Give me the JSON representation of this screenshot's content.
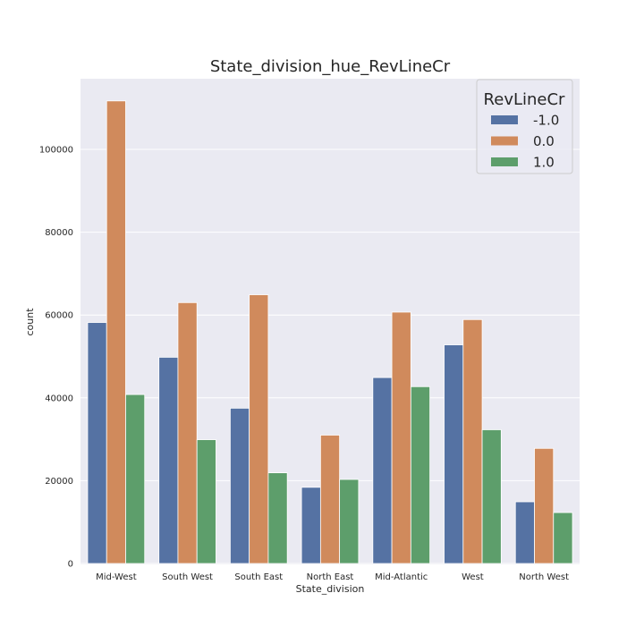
{
  "chart_data": {
    "type": "bar",
    "title": "State_division_hue_RevLineCr",
    "xlabel": "State_division",
    "ylabel": "count",
    "ylim": [
      0,
      120000
    ],
    "yticks": [
      "0",
      "20000",
      "40000",
      "60000",
      "80000",
      "100000"
    ],
    "grid": true,
    "legend_position": "top-right",
    "legend_title": "RevLineCr",
    "categories": [
      "Mid-West",
      "South West",
      "South East",
      "North East",
      "Mid-Atlantic",
      "West",
      "North West"
    ],
    "series": [
      {
        "name": "-1.0",
        "color": "#5572a3",
        "values": [
          58200,
          49800,
          37500,
          18400,
          44900,
          52800,
          14900
        ]
      },
      {
        "name": "0.0",
        "color": "#d08a5c",
        "values": [
          111700,
          63000,
          64900,
          31000,
          60700,
          58900,
          27800
        ]
      },
      {
        "name": "1.0",
        "color": "#5d9e6b",
        "values": [
          40800,
          29900,
          21900,
          20300,
          42700,
          32300,
          12300
        ]
      }
    ]
  },
  "colors": {
    "plot_background": "#eaeaf2",
    "grid": "#ffffff",
    "text": "#262626"
  }
}
